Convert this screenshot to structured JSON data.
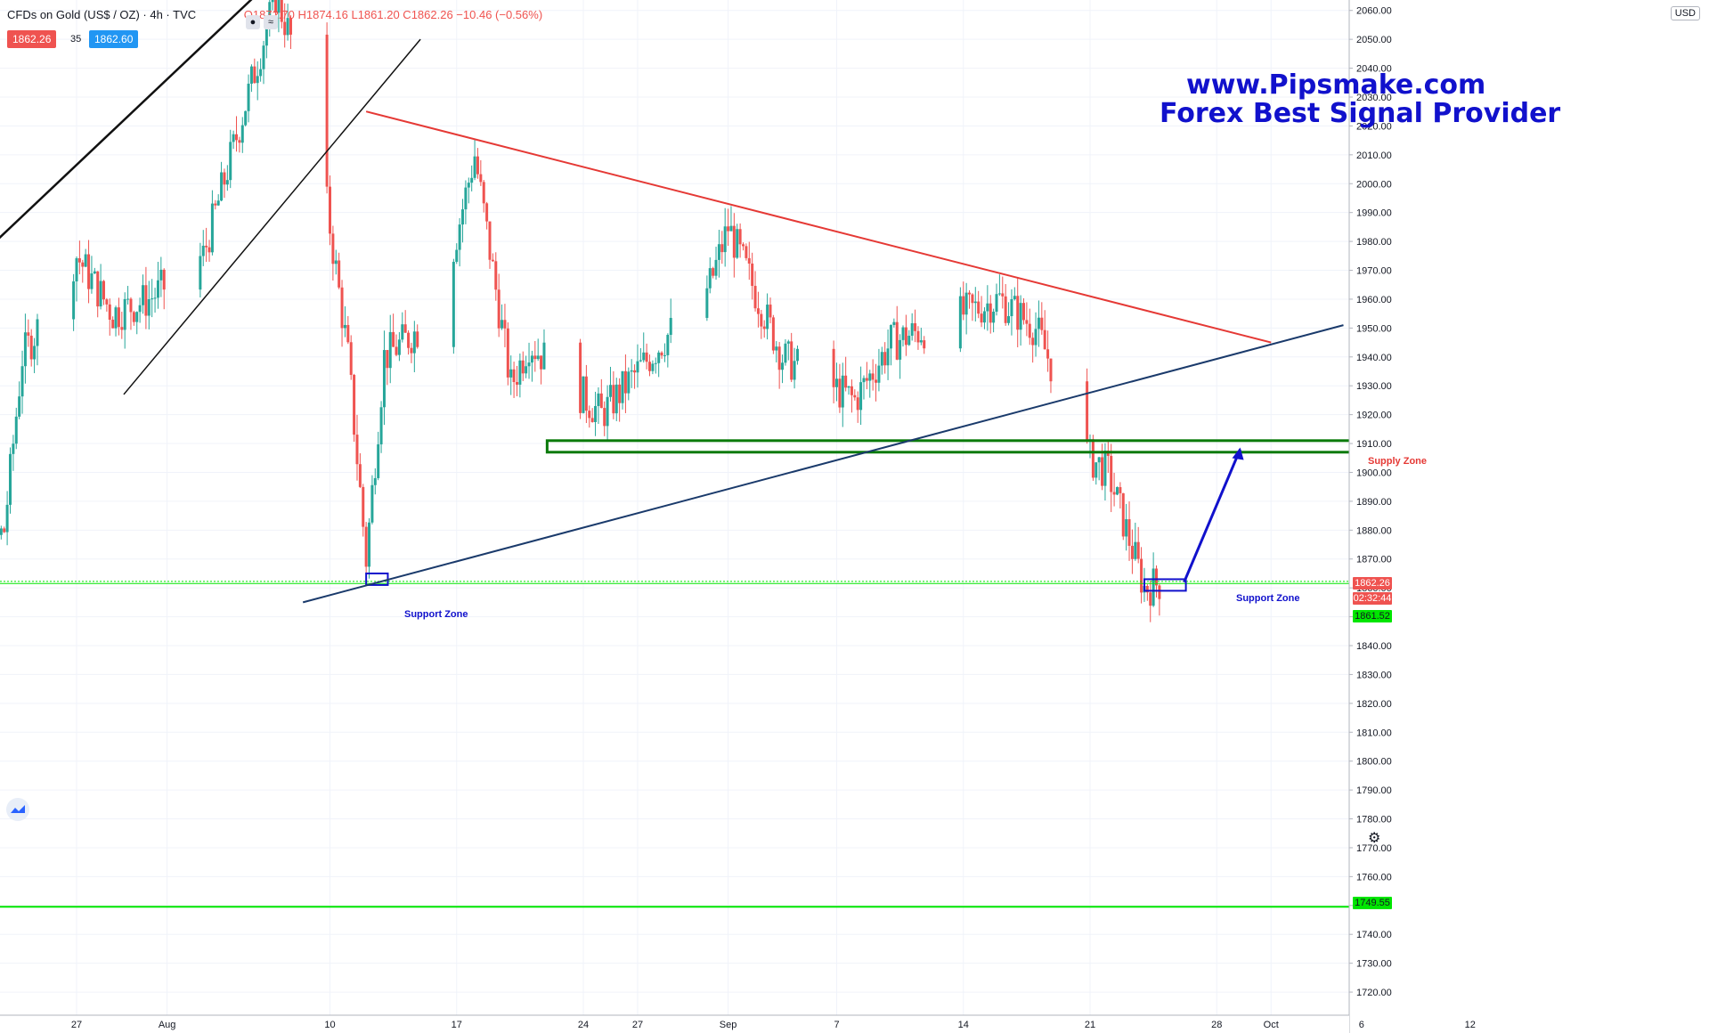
{
  "header": {
    "symbol": "CFDs on Gold (US$ / OZ) · 4h · TVC",
    "ohlc": "O1872.70  H1874.16  L1861.20  C1862.26  −10.46 (−0.56%)",
    "sell_price": "1862.26",
    "spread": "35",
    "buy_price": "1862.60"
  },
  "brand": {
    "line1": "www.Pipsmake.com",
    "line2": "Forex Best Signal Provider"
  },
  "currency_label": "USD",
  "price_tags": {
    "last_price": "1862.26",
    "countdown": "02:32:44",
    "green_level": "1861.52",
    "lower_level": "1749.55"
  },
  "annotations": {
    "support_left": "Support Zone",
    "support_right": "Support Zone",
    "supply": "Supply Zone"
  },
  "colors": {
    "up": "#26a69a",
    "down": "#ef5350",
    "accent_blue": "#1111cc",
    "zone_green": "#0a7a0a",
    "level_green": "#00e600",
    "trend_red": "#e53935",
    "trend_navy": "#1a3a6b"
  },
  "chart_data": {
    "type": "candlestick",
    "title": "CFDs on Gold (US$ / OZ)",
    "timeframe": "4h",
    "ylim": [
      1712,
      2063
    ],
    "yticks": [
      2060,
      2050,
      2040,
      2030,
      2020,
      2010,
      2000,
      1990,
      1980,
      1970,
      1960,
      1950,
      1940,
      1930,
      1920,
      1910,
      1900,
      1890,
      1880,
      1870,
      1860,
      1850,
      1840,
      1830,
      1820,
      1810,
      1800,
      1790,
      1780,
      1770,
      1760,
      1750,
      1740,
      1730,
      1720
    ],
    "xticks": [
      "27",
      "Aug",
      "10",
      "17",
      "24",
      "27",
      "Sep",
      "7",
      "14",
      "21",
      "28",
      "Oct",
      "6",
      "12"
    ],
    "price_path": [
      [
        1852,
        "2020-07-20"
      ],
      [
        1880,
        "2020-07-23"
      ],
      [
        1940,
        "2020-07-24"
      ],
      [
        1975,
        "2020-07-27"
      ],
      [
        1955,
        "2020-07-29"
      ],
      [
        1960,
        "2020-07-31"
      ],
      [
        1975,
        "2020-08-03"
      ],
      [
        2020,
        "2020-08-05"
      ],
      [
        2065,
        "2020-08-07"
      ],
      [
        2030,
        "2020-08-09"
      ],
      [
        1940,
        "2020-08-11"
      ],
      [
        1870,
        "2020-08-12"
      ],
      [
        1940,
        "2020-08-13"
      ],
      [
        1955,
        "2020-08-16"
      ],
      [
        2010,
        "2020-08-18"
      ],
      [
        1930,
        "2020-08-20"
      ],
      [
        1945,
        "2020-08-21"
      ],
      [
        1920,
        "2020-08-25"
      ],
      [
        1935,
        "2020-08-27"
      ],
      [
        1965,
        "2020-08-31"
      ],
      [
        1985,
        "2020-09-01"
      ],
      [
        1940,
        "2020-09-04"
      ],
      [
        1925,
        "2020-09-08"
      ],
      [
        1945,
        "2020-09-10"
      ],
      [
        1955,
        "2020-09-14"
      ],
      [
        1960,
        "2020-09-16"
      ],
      [
        1950,
        "2020-09-18"
      ],
      [
        1905,
        "2020-09-21"
      ],
      [
        1900,
        "2020-09-22"
      ],
      [
        1860,
        "2020-09-24"
      ],
      [
        1862,
        "2020-09-25"
      ]
    ],
    "horizontal_levels": [
      1862.26,
      1861.52,
      1749.55
    ],
    "zones": [
      {
        "label": "Supply Zone",
        "from": 1907,
        "to": 1911
      },
      {
        "label": "Support Zone",
        "from": 1858,
        "to": 1862
      }
    ],
    "trend_lines": [
      {
        "color": "red",
        "from": [
          2025,
          "2020-08-12"
        ],
        "to": [
          1945,
          "2020-10-01"
        ]
      },
      {
        "color": "navy",
        "from": [
          1855,
          "2020-08-09"
        ],
        "to": [
          1951,
          "2020-10-05"
        ]
      }
    ]
  }
}
